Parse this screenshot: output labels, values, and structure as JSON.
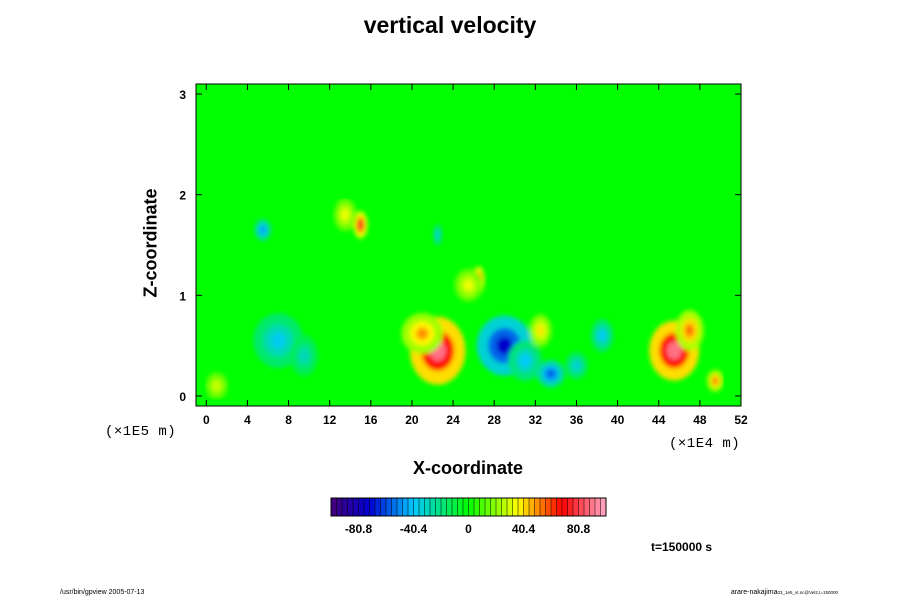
{
  "chart_data": {
    "type": "heatmap",
    "title": "vertical velocity",
    "xlabel": "X-coordinate",
    "ylabel": "Z-coordinate",
    "x_scale_label": "(×1E4 m)",
    "y_scale_label": "(×1E5 m)",
    "xlim": [
      -1,
      52
    ],
    "ylim": [
      -0.1,
      3.1
    ],
    "x_ticks": [
      "0",
      "4",
      "8",
      "12",
      "16",
      "20",
      "24",
      "28",
      "32",
      "36",
      "40",
      "44",
      "48",
      "52"
    ],
    "y_ticks": [
      "0",
      "1",
      "2",
      "3"
    ],
    "colorbar": {
      "range": [
        -101,
        101
      ],
      "tick_labels": [
        "-80.8",
        "-40.4",
        "0",
        "40.4",
        "80.8"
      ],
      "colormap": "rainbow (purple-blue-cyan-green-yellow-red-pink)"
    },
    "background_value": 0,
    "features": [
      {
        "x": 22.5,
        "z": 0.45,
        "value": 90,
        "sx": 2.0,
        "sz": 0.25
      },
      {
        "x": 21.0,
        "z": 0.62,
        "value": 50,
        "sx": 1.5,
        "sz": 0.15
      },
      {
        "x": 29.0,
        "z": 0.5,
        "value": -75,
        "sx": 2.0,
        "sz": 0.22
      },
      {
        "x": 31.0,
        "z": 0.35,
        "value": -40,
        "sx": 1.2,
        "sz": 0.15
      },
      {
        "x": 33.5,
        "z": 0.22,
        "value": -60,
        "sx": 1.0,
        "sz": 0.1
      },
      {
        "x": 32.5,
        "z": 0.65,
        "value": 40,
        "sx": 0.8,
        "sz": 0.12
      },
      {
        "x": 45.5,
        "z": 0.45,
        "value": 90,
        "sx": 1.8,
        "sz": 0.22
      },
      {
        "x": 47.0,
        "z": 0.65,
        "value": 55,
        "sx": 1.0,
        "sz": 0.15
      },
      {
        "x": 49.5,
        "z": 0.15,
        "value": 55,
        "sx": 0.6,
        "sz": 0.08
      },
      {
        "x": 26.5,
        "z": 1.15,
        "value": 80,
        "sx": 0.4,
        "sz": 0.1
      },
      {
        "x": 25.5,
        "z": 1.1,
        "value": 35,
        "sx": 1.0,
        "sz": 0.12
      },
      {
        "x": 15.0,
        "z": 1.7,
        "value": 75,
        "sx": 0.5,
        "sz": 0.1
      },
      {
        "x": 13.5,
        "z": 1.8,
        "value": 35,
        "sx": 0.8,
        "sz": 0.12
      },
      {
        "x": 5.5,
        "z": 1.65,
        "value": -50,
        "sx": 0.6,
        "sz": 0.08
      },
      {
        "x": 7.0,
        "z": 0.55,
        "value": -38,
        "sx": 1.8,
        "sz": 0.2
      },
      {
        "x": 9.5,
        "z": 0.4,
        "value": -30,
        "sx": 1.0,
        "sz": 0.15
      },
      {
        "x": 38.5,
        "z": 0.6,
        "value": -40,
        "sx": 0.8,
        "sz": 0.12
      },
      {
        "x": 36.0,
        "z": 0.3,
        "value": -35,
        "sx": 0.8,
        "sz": 0.1
      },
      {
        "x": 22.5,
        "z": 1.6,
        "value": -40,
        "sx": 0.3,
        "sz": 0.08
      },
      {
        "x": 1.0,
        "z": 0.1,
        "value": 30,
        "sx": 0.8,
        "sz": 0.1
      }
    ]
  },
  "time_label": "t=150000 s",
  "footer": {
    "left": "/usr/bin/gpview 2005-07-13",
    "right_main": "arare-nakajima",
    "right_sub": "03_1e5_vt.nc@Vel2,t=150000"
  }
}
